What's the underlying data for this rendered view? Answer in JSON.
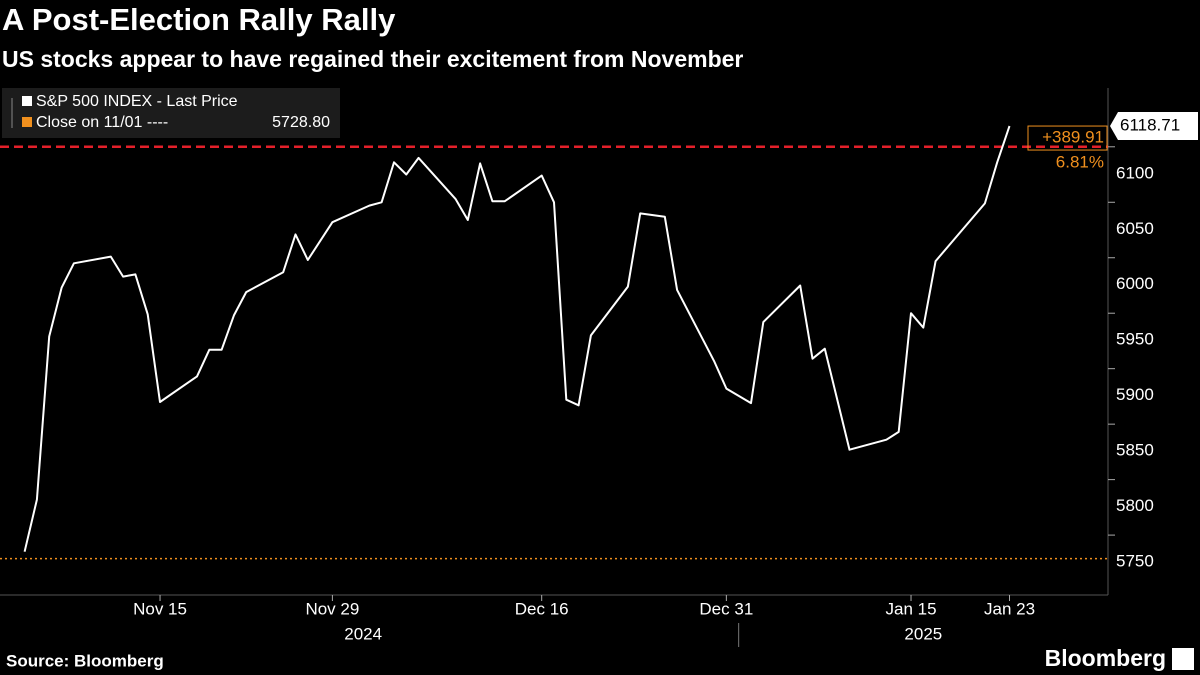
{
  "chart_data": {
    "type": "line",
    "title": "A Post-Election Rally Rally",
    "subtitle": "US stocks appear to have regained their excitement from November",
    "source": "Source: Bloomberg",
    "logo": "Bloomberg",
    "x": [
      "2024-11-04",
      "2024-11-05",
      "2024-11-06",
      "2024-11-07",
      "2024-11-08",
      "2024-11-11",
      "2024-11-12",
      "2024-11-13",
      "2024-11-14",
      "2024-11-15",
      "2024-11-18",
      "2024-11-19",
      "2024-11-20",
      "2024-11-21",
      "2024-11-22",
      "2024-11-25",
      "2024-11-26",
      "2024-11-27",
      "2024-11-29",
      "2024-12-02",
      "2024-12-03",
      "2024-12-04",
      "2024-12-05",
      "2024-12-06",
      "2024-12-09",
      "2024-12-10",
      "2024-12-11",
      "2024-12-12",
      "2024-12-13",
      "2024-12-16",
      "2024-12-17",
      "2024-12-18",
      "2024-12-19",
      "2024-12-20",
      "2024-12-23",
      "2024-12-24",
      "2024-12-26",
      "2024-12-27",
      "2024-12-30",
      "2024-12-31",
      "2025-01-02",
      "2025-01-03",
      "2025-01-06",
      "2025-01-07",
      "2025-01-08",
      "2025-01-10",
      "2025-01-13",
      "2025-01-14",
      "2025-01-15",
      "2025-01-16",
      "2025-01-17",
      "2025-01-21",
      "2025-01-22",
      "2025-01-23"
    ],
    "series": [
      {
        "name": "S&P 500 INDEX - Last Price",
        "color": "#ffffff",
        "values": [
          5735,
          5782,
          5929,
          5973,
          5995,
          6001,
          5983,
          5985,
          5949,
          5870,
          5893,
          5917,
          5917,
          5948,
          5969,
          5987,
          6021,
          5998,
          6032,
          6047,
          6050,
          6086,
          6075,
          6090,
          6053,
          6034,
          6085,
          6051,
          6051,
          6074,
          6050,
          5872,
          5867,
          5930,
          5974,
          6040,
          6037,
          5971,
          5907,
          5882,
          5869,
          5942,
          5975,
          5909,
          5918,
          5827,
          5836,
          5843,
          5950,
          5937,
          5997,
          6049,
          6086,
          6118.71
        ]
      }
    ],
    "reference_lines": [
      {
        "name": "Close on 11/01 ----",
        "value": 5728.8,
        "value_label": "5728.80",
        "color": "#f0901e",
        "style": "dotted"
      },
      {
        "value": 6100,
        "color": "#e4202a",
        "style": "dashed"
      }
    ],
    "annotations": [
      {
        "value": 389.91,
        "label": "+389.91",
        "color": "#f0901e"
      },
      {
        "value": 6.81,
        "label": "6.81%",
        "color": "#f0901e"
      }
    ],
    "xlim": [
      "2024-11-02",
      "2025-01-31"
    ],
    "xticks": [
      {
        "value": "2024-11-15",
        "label": "Nov 15"
      },
      {
        "value": "2024-11-29",
        "label": "Nov 29"
      },
      {
        "value": "2024-12-16",
        "label": "Dec 16"
      },
      {
        "value": "2024-12-31",
        "label": "Dec 31"
      },
      {
        "value": "2025-01-15",
        "label": "Jan 15"
      },
      {
        "value": "2025-01-23",
        "label": "Jan 23"
      }
    ],
    "x_groups": [
      {
        "label": "2024",
        "start": "2024-11-02",
        "end": "2024-12-31"
      },
      {
        "label": "2025",
        "start": "2025-01-01",
        "end": "2025-01-31"
      }
    ],
    "ylim": [
      5696,
      6153
    ],
    "yticks": [
      5750,
      5800,
      5850,
      5900,
      5950,
      6000,
      6050,
      6100
    ],
    "grid": false
  }
}
